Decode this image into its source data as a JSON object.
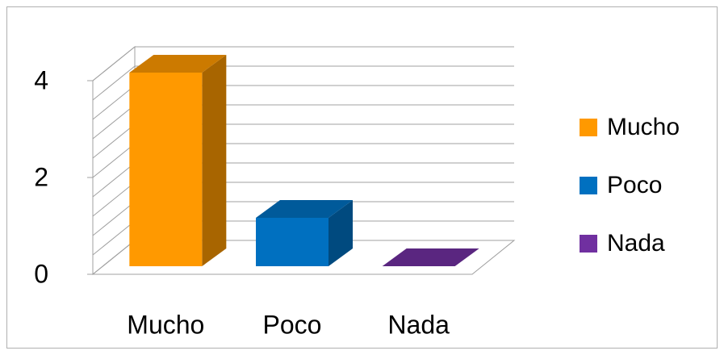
{
  "chart_data": {
    "type": "bar3d",
    "categories": [
      "Mucho",
      "Poco",
      "Nada"
    ],
    "series": [
      {
        "name": "Mucho",
        "color": "#ff9900"
      },
      {
        "name": "Poco",
        "color": "#0070c0"
      },
      {
        "name": "Nada",
        "color": "#7030a0"
      }
    ],
    "values": [
      4,
      1,
      0
    ],
    "ylim": [
      0,
      4
    ],
    "yticks": [
      0,
      2,
      4
    ],
    "minor_yticks": [
      0.4,
      0.8,
      1.2,
      1.6,
      2.4,
      2.8,
      3.2,
      3.6
    ],
    "grid": true,
    "legend": "right"
  }
}
